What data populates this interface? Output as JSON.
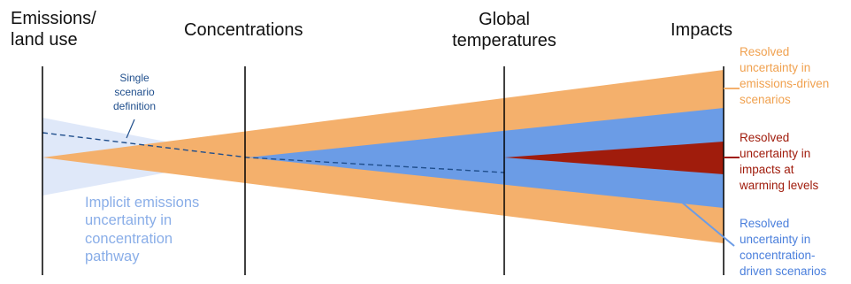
{
  "headers": {
    "emissions": [
      "Emissions/",
      "land use"
    ],
    "concentrations": "Concentrations",
    "global_temperatures": [
      "Global",
      "temperatures"
    ],
    "impacts": "Impacts"
  },
  "annotations": {
    "single_scenario": [
      "Single",
      "scenario",
      "definition"
    ],
    "implicit_emissions": [
      "Implicit emissions",
      "uncertainty in",
      "concentration",
      "pathway"
    ],
    "resolved_emissions": [
      "Resolved",
      "uncertainty in",
      "emissions-driven",
      "scenarios"
    ],
    "resolved_impacts": [
      "Resolved",
      "uncertainty in",
      "impacts at",
      "warming levels"
    ],
    "resolved_concentration": [
      "Resolved",
      "uncertainty in",
      "concentration-",
      "driven scenarios"
    ]
  },
  "colors": {
    "orange": "#f4b06c",
    "blue": "#6b9ce6",
    "light_blue": "#dce6f8",
    "light_blue_text": "#8aaee8",
    "dark_red": "#a01c0c",
    "dark_blue": "#1f4e8c",
    "orange_text": "#f0a14f",
    "blue_text": "#4a7fdc",
    "stage_line": "#000000"
  },
  "icons": {
    "stage_lines": "vertical-divider-lines",
    "dashed_line": "dashed-scenario-line",
    "pointer_lines": "callout-lines"
  }
}
